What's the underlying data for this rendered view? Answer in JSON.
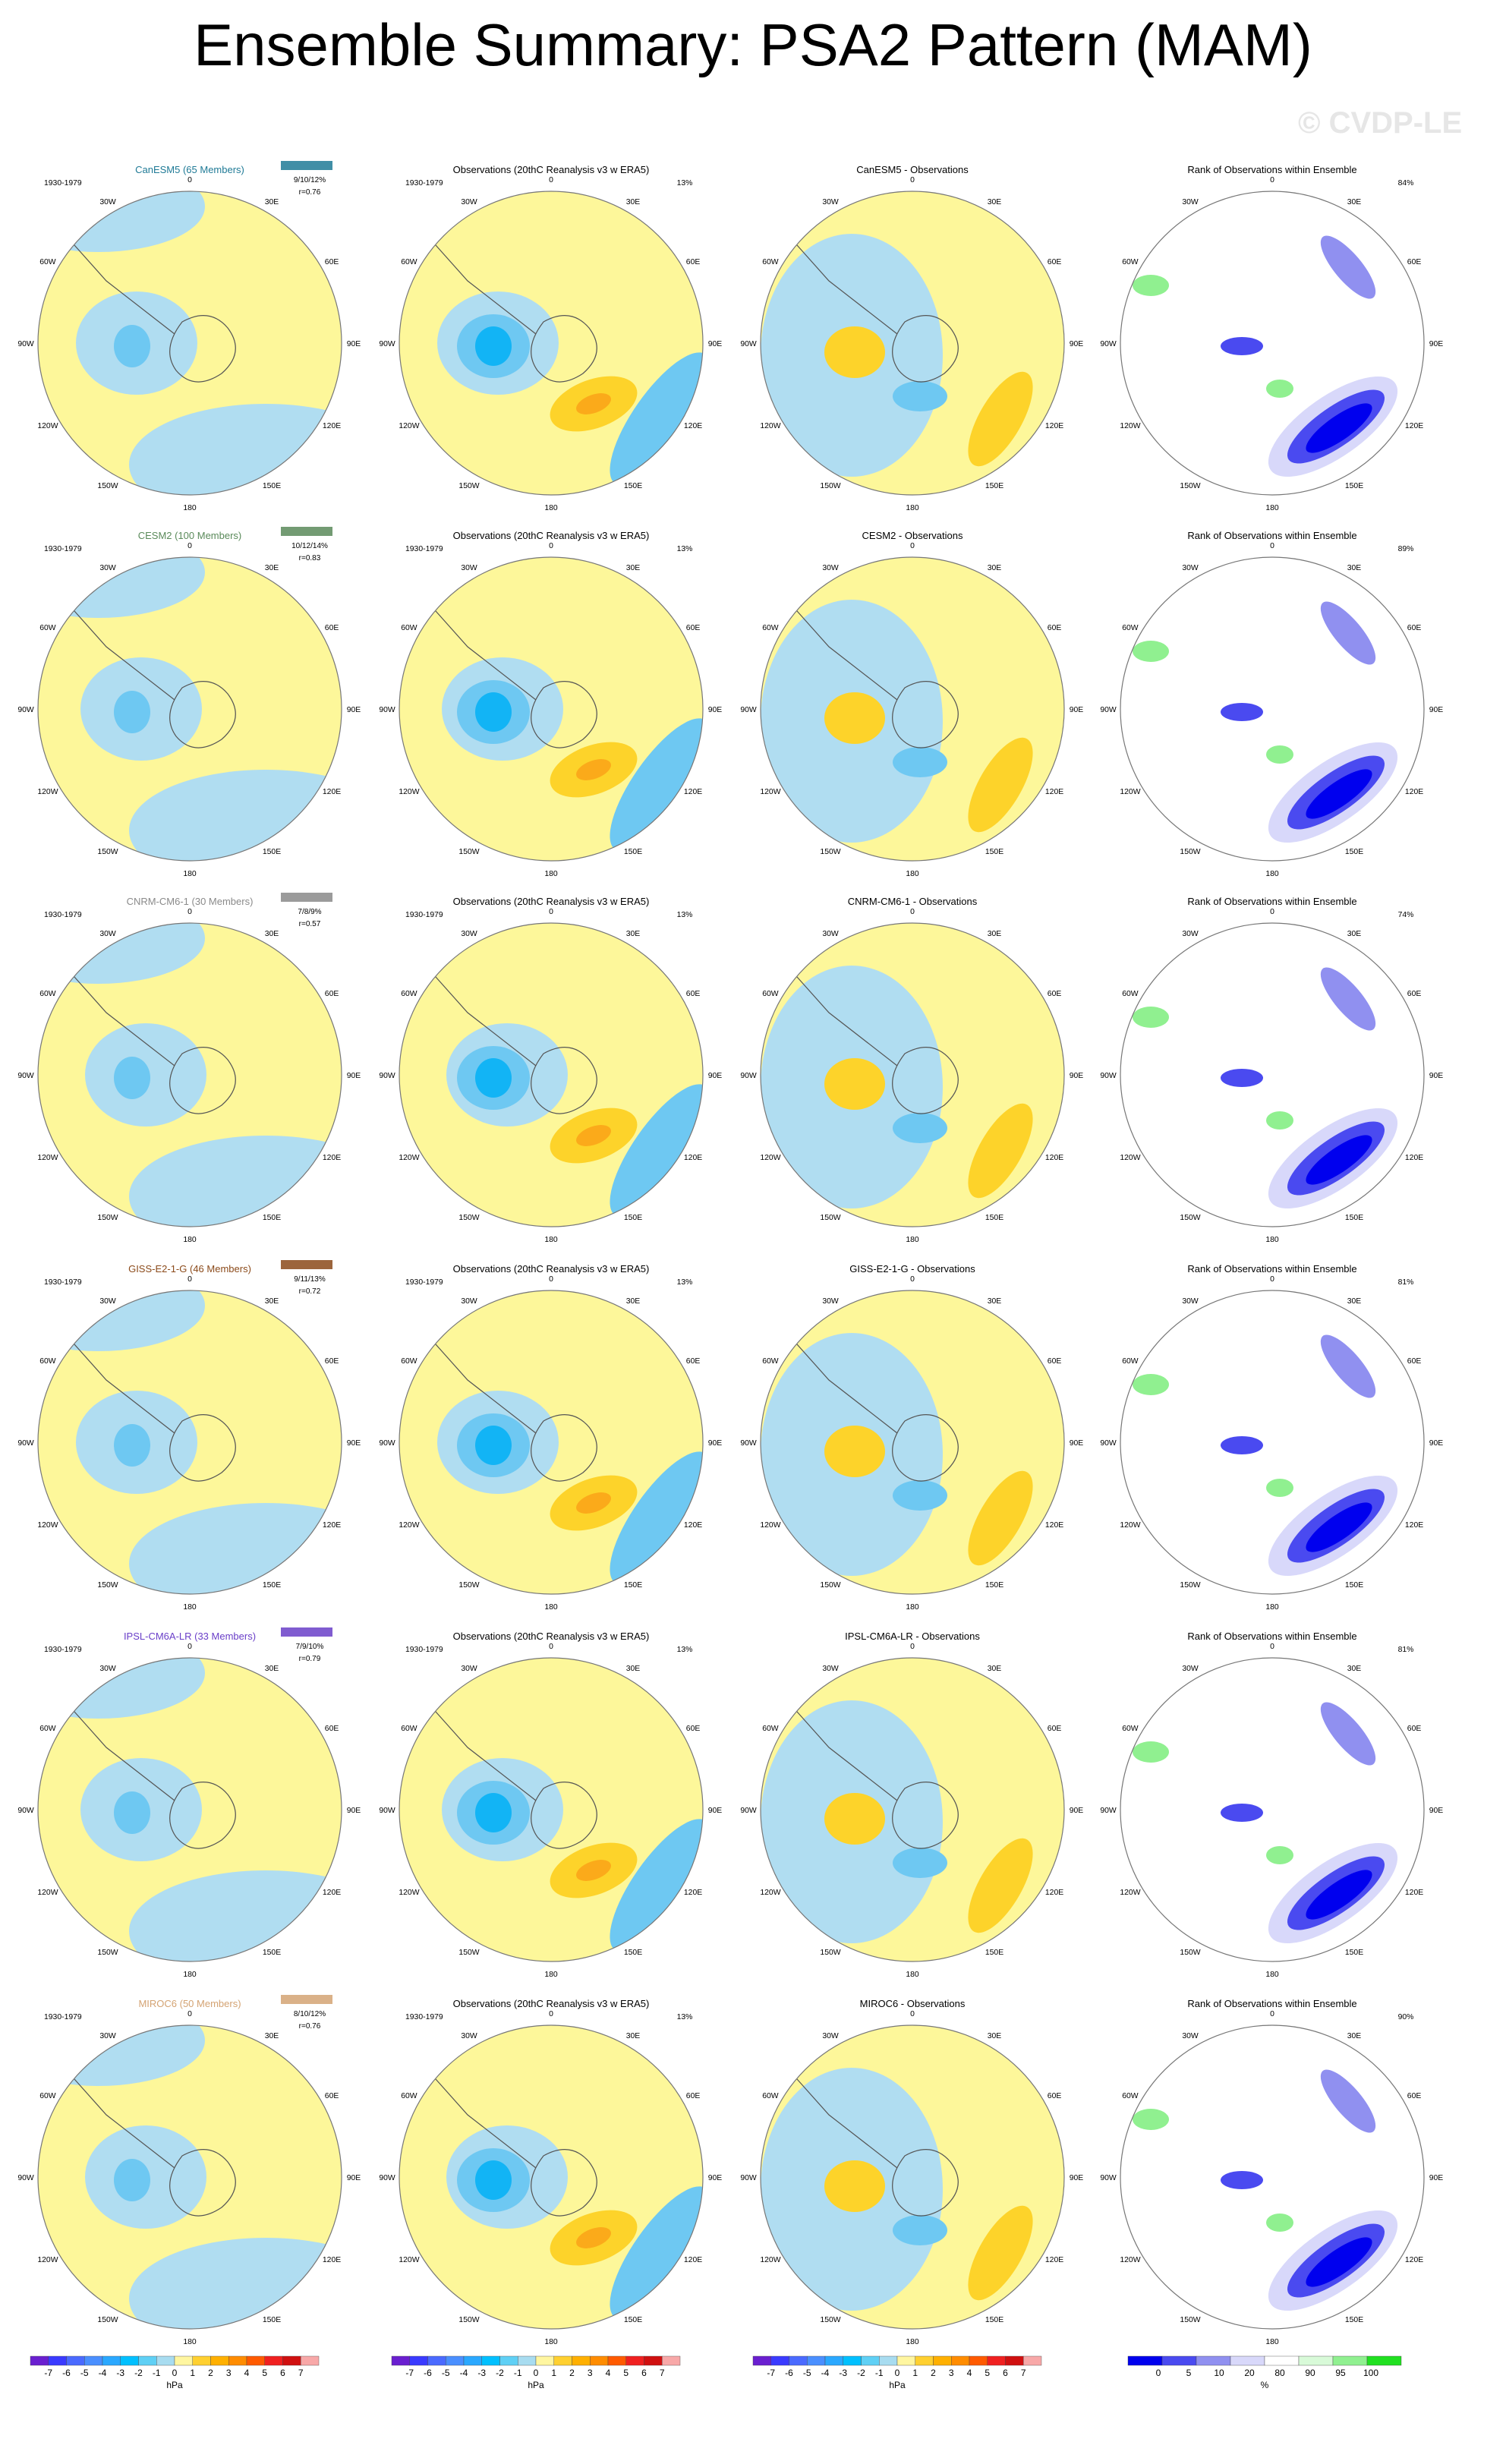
{
  "title": "Ensemble Summary: PSA2 Pattern (MAM)",
  "watermark": "© CVDP-LE",
  "period": "1930-1979",
  "obs_title": "Observations (20thC Reanalysis v3 w ERA5)",
  "rank_title": "Rank of Observations within Ensemble",
  "obs_pct": "13%",
  "lon_labels": {
    "n": "0",
    "ne1": "30E",
    "ne2": "60E",
    "e": "90E",
    "se2": "120E",
    "se1": "150E",
    "s": "180",
    "sw1": "150W",
    "sw2": "120W",
    "w": "90W",
    "nw2": "60W",
    "nw1": "30W"
  },
  "rows": [
    {
      "model": "CanESM5 (65 Members)",
      "color": "#1f7a96",
      "stats": "9/10/12%",
      "r": "r=0.76",
      "diff_title": "CanESM5 - Observations",
      "rank_pct": "84%"
    },
    {
      "model": "CESM2 (100 Members)",
      "color": "#5a8a5a",
      "stats": "10/12/14%",
      "r": "r=0.83",
      "diff_title": "CESM2 - Observations",
      "rank_pct": "89%"
    },
    {
      "model": "CNRM-CM6-1 (30 Members)",
      "color": "#8a8a8a",
      "stats": "7/8/9%",
      "r": "r=0.57",
      "diff_title": "CNRM-CM6-1 - Observations",
      "rank_pct": "74%"
    },
    {
      "model": "GISS-E2-1-G (46 Members)",
      "color": "#8b4a1a",
      "stats": "9/11/13%",
      "r": "r=0.72",
      "diff_title": "GISS-E2-1-G - Observations",
      "rank_pct": "81%"
    },
    {
      "model": "IPSL-CM6A-LR (33 Members)",
      "color": "#6a3fc8",
      "stats": "7/9/10%",
      "r": "r=0.79",
      "diff_title": "IPSL-CM6A-LR - Observations",
      "rank_pct": "81%"
    },
    {
      "model": "MIROC6 (50 Members)",
      "color": "#d4a373",
      "stats": "8/10/12%",
      "r": "r=0.76",
      "diff_title": "MIROC6 - Observations",
      "rank_pct": "90%"
    }
  ],
  "colorbar_hpa": {
    "labels": [
      "-7",
      "-6",
      "-5",
      "-4",
      "-3",
      "-2",
      "-1",
      "0",
      "1",
      "2",
      "3",
      "4",
      "5",
      "6",
      "7"
    ],
    "colors": [
      "#6a1fd0",
      "#3a3aff",
      "#4a6aff",
      "#4a8fff",
      "#2aa8ff",
      "#00c0ff",
      "#5fd0f5",
      "#a8dcf0",
      "#fff6a0",
      "#ffd030",
      "#ffb000",
      "#ff8c00",
      "#ff5a00",
      "#f02020",
      "#d01010",
      "#f8a8a8"
    ],
    "units": "hPa"
  },
  "colorbar_rank": {
    "labels": [
      "0",
      "5",
      "10",
      "20",
      "80",
      "90",
      "95",
      "100"
    ],
    "colors": [
      "#0000ee",
      "#4a4af0",
      "#9090f0",
      "#d8d8fa",
      "#ffffff",
      "#d8fad8",
      "#90f090",
      "#20e020"
    ],
    "units": "%"
  },
  "colors": {
    "positive_weak": "#fdf79a",
    "negative_weak": "#b0ddf1",
    "positive_mid": "#fdd32a",
    "positive_strong": "#fbaa1a",
    "negative_mid": "#6ec8f2",
    "negative_strong": "#12b4f5",
    "rank_low": "#0000ee",
    "rank_high": "#20e020"
  }
}
